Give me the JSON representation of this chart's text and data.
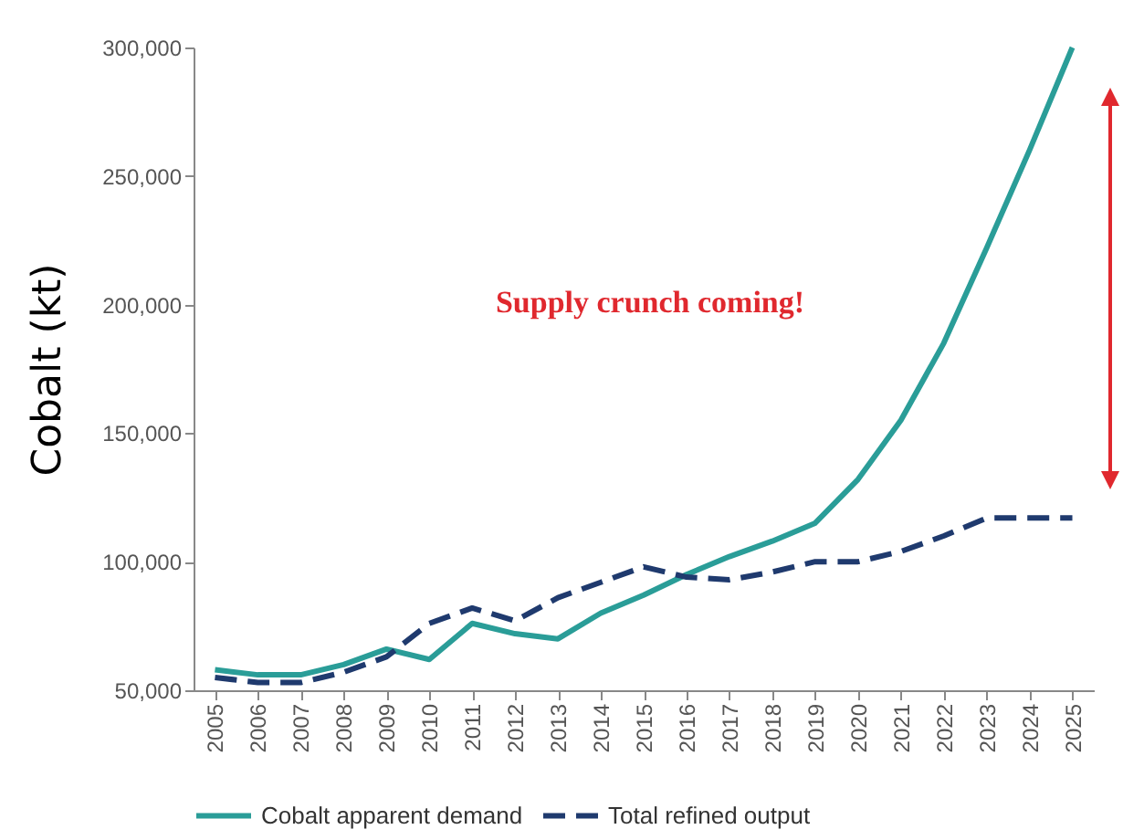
{
  "chart_data": {
    "type": "line",
    "ylabel": "Cobalt  (kt)",
    "categories": [
      "2005",
      "2006",
      "2007",
      "2008",
      "2009",
      "2010",
      "2011",
      "2012",
      "2013",
      "2014",
      "2015",
      "2016",
      "2017",
      "2018",
      "2019",
      "2020",
      "2021",
      "2022",
      "2023",
      "2024",
      "2025"
    ],
    "series": [
      {
        "name": "Cobalt apparent demand",
        "color": "#2a9d98",
        "line_style": "solid",
        "values": [
          58000,
          56000,
          56000,
          60000,
          66000,
          62000,
          76000,
          72000,
          70000,
          80000,
          87000,
          95000,
          102000,
          108000,
          115000,
          132000,
          155000,
          185000,
          222000,
          260000,
          300000
        ]
      },
      {
        "name": "Total refined output",
        "color": "#1f3a6e",
        "line_style": "dashed",
        "values": [
          55000,
          53000,
          53000,
          57000,
          63000,
          76000,
          82000,
          77000,
          86000,
          92000,
          98000,
          94000,
          93000,
          96000,
          100000,
          100000,
          104000,
          110000,
          117000,
          117000,
          117000
        ]
      }
    ],
    "ylim": [
      50000,
      300000
    ],
    "yticks": [
      {
        "value": 50000,
        "label": "50,000"
      },
      {
        "value": 100000,
        "label": "100,000"
      },
      {
        "value": 150000,
        "label": "150,000"
      },
      {
        "value": 200000,
        "label": "200,000"
      },
      {
        "value": 250000,
        "label": "250,000"
      },
      {
        "value": 300000,
        "label": "300,000"
      }
    ],
    "legend": "bottom",
    "grid": false,
    "marker": "none",
    "annotations": [
      "Supply crunch coming!"
    ]
  }
}
